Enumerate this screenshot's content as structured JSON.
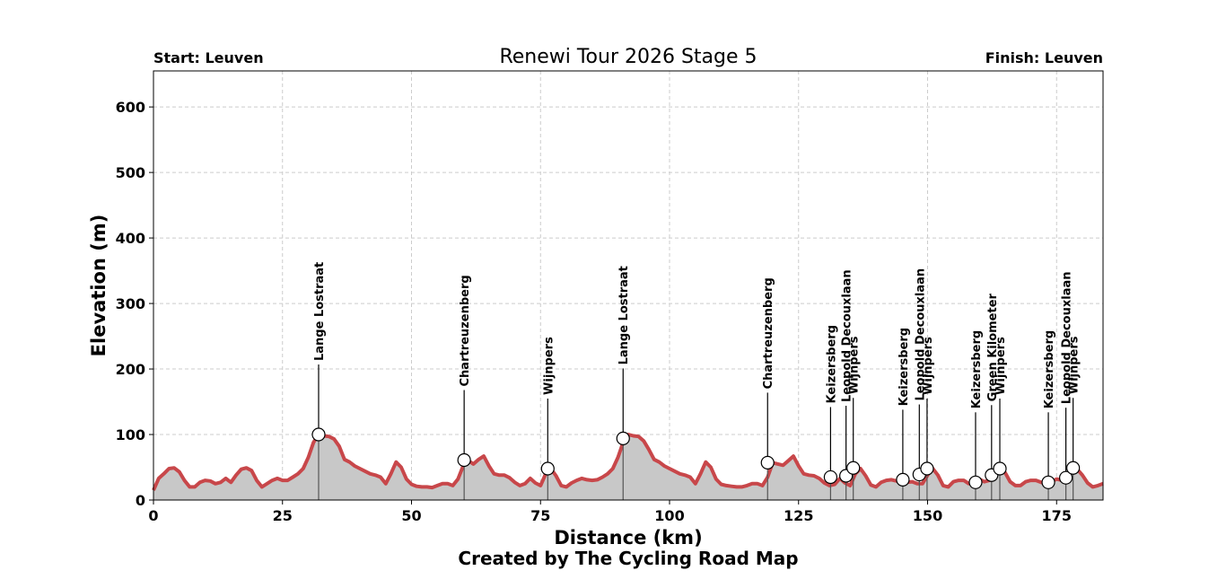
{
  "chart_data": {
    "type": "area",
    "title": "Renewi Tour 2026 Stage 5",
    "start_label": "Start: Leuven",
    "finish_label": "Finish: Leuven",
    "xlabel": "Distance (km)",
    "ylabel": "Elevation (m)",
    "credit": "Created by The Cycling Road Map",
    "xlim": [
      0,
      184
    ],
    "ylim": [
      0,
      655
    ],
    "xticks": [
      0,
      25,
      50,
      75,
      100,
      125,
      150,
      175
    ],
    "yticks": [
      0,
      100,
      200,
      300,
      400,
      500,
      600
    ],
    "grid": true,
    "line_color": "#c8474a",
    "fill_color": "#c8c8c8",
    "profile": {
      "x": [
        0,
        1,
        2,
        3,
        4,
        5,
        6,
        7,
        8,
        9,
        10,
        11,
        12,
        13,
        14,
        15,
        16,
        17,
        18,
        19,
        20,
        21,
        22,
        23,
        24,
        25,
        26,
        27,
        28,
        29,
        30,
        31,
        32,
        33,
        34,
        35,
        36,
        37,
        38,
        39,
        40,
        41,
        42,
        43,
        44,
        45,
        46,
        47,
        48,
        49,
        50,
        51,
        52,
        53,
        54,
        55,
        56,
        57,
        58,
        59,
        60,
        61,
        62,
        63,
        64,
        65,
        66,
        67,
        68,
        69,
        70,
        71,
        72,
        73,
        74,
        75,
        76,
        77,
        78,
        79,
        80,
        81,
        82,
        83,
        84,
        85,
        86,
        87,
        88,
        89,
        90,
        91,
        92,
        93,
        94,
        95,
        96,
        97,
        98,
        99,
        100,
        101,
        102,
        103,
        104,
        105,
        106,
        107,
        108,
        109,
        110,
        111,
        112,
        113,
        114,
        115,
        116,
        117,
        118,
        119,
        120,
        121,
        122,
        123,
        124,
        125,
        126,
        127,
        128,
        129,
        130,
        131,
        132,
        133,
        134,
        135,
        136,
        137,
        138,
        139,
        140,
        141,
        142,
        143,
        144,
        145,
        146,
        147,
        148,
        149,
        150,
        151,
        152,
        153,
        154,
        155,
        156,
        157,
        158,
        159,
        160,
        161,
        162,
        163,
        164,
        165,
        166,
        167,
        168,
        169,
        170,
        171,
        172,
        173,
        174,
        175,
        176,
        177,
        178,
        179,
        180,
        181,
        182,
        183,
        184
      ],
      "y": [
        15,
        33,
        40,
        48,
        49,
        43,
        30,
        20,
        20,
        27,
        30,
        29,
        25,
        27,
        33,
        27,
        38,
        47,
        49,
        45,
        30,
        20,
        25,
        30,
        33,
        30,
        30,
        35,
        40,
        48,
        65,
        88,
        100,
        98,
        97,
        93,
        82,
        62,
        58,
        52,
        48,
        44,
        40,
        38,
        35,
        25,
        40,
        58,
        50,
        32,
        24,
        21,
        20,
        20,
        19,
        22,
        25,
        25,
        22,
        32,
        52,
        60,
        55,
        62,
        67,
        52,
        40,
        38,
        38,
        34,
        27,
        22,
        25,
        33,
        26,
        22,
        40,
        48,
        37,
        22,
        20,
        26,
        30,
        33,
        31,
        30,
        31,
        35,
        40,
        48,
        65,
        88,
        100,
        98,
        97,
        90,
        77,
        62,
        58,
        52,
        48,
        44,
        40,
        38,
        35,
        25,
        40,
        58,
        50,
        32,
        24,
        22,
        21,
        20,
        20,
        22,
        25,
        25,
        22,
        35,
        57,
        55,
        53,
        60,
        67,
        52,
        40,
        38,
        37,
        33,
        26,
        22,
        24,
        33,
        26,
        22,
        40,
        48,
        37,
        23,
        20,
        27,
        30,
        31,
        29,
        28,
        27,
        28,
        25,
        25,
        38,
        48,
        38,
        22,
        20,
        28,
        30,
        30,
        25,
        27,
        32,
        28,
        30,
        38,
        48,
        42,
        28,
        22,
        22,
        28,
        30,
        30,
        27,
        25,
        28,
        32,
        30,
        36,
        47,
        47,
        38,
        26,
        20,
        22,
        25
      ]
    },
    "climbs": [
      {
        "name": "Lange Lostraat",
        "x": 32,
        "y": 100
      },
      {
        "name": "Chartreuzenberg",
        "x": 60.2,
        "y": 61
      },
      {
        "name": "Wijnpers",
        "x": 76.4,
        "y": 48
      },
      {
        "name": "Lange Lostraat",
        "x": 91,
        "y": 94
      },
      {
        "name": "Chartreuzenberg",
        "x": 119,
        "y": 57
      },
      {
        "name": "Keizersberg",
        "x": 131.2,
        "y": 35
      },
      {
        "name": "Leopold Decouxlaan",
        "x": 134.2,
        "y": 37
      },
      {
        "name": "Wijnpers",
        "x": 135.6,
        "y": 49
      },
      {
        "name": "Keizersberg",
        "x": 145.2,
        "y": 31
      },
      {
        "name": "Leopold Decouxlaan",
        "x": 148.4,
        "y": 39
      },
      {
        "name": "Wijnpers",
        "x": 149.9,
        "y": 48
      },
      {
        "name": "Keizersberg",
        "x": 159.3,
        "y": 27
      },
      {
        "name": "Green Kilometer",
        "x": 162.4,
        "y": 38
      },
      {
        "name": "Wijnpers",
        "x": 164,
        "y": 48
      },
      {
        "name": "Keizersberg",
        "x": 173.4,
        "y": 27
      },
      {
        "name": "Leopold Decouxlaan",
        "x": 176.8,
        "y": 34
      },
      {
        "name": "Wijnpers",
        "x": 178.2,
        "y": 49
      }
    ]
  }
}
